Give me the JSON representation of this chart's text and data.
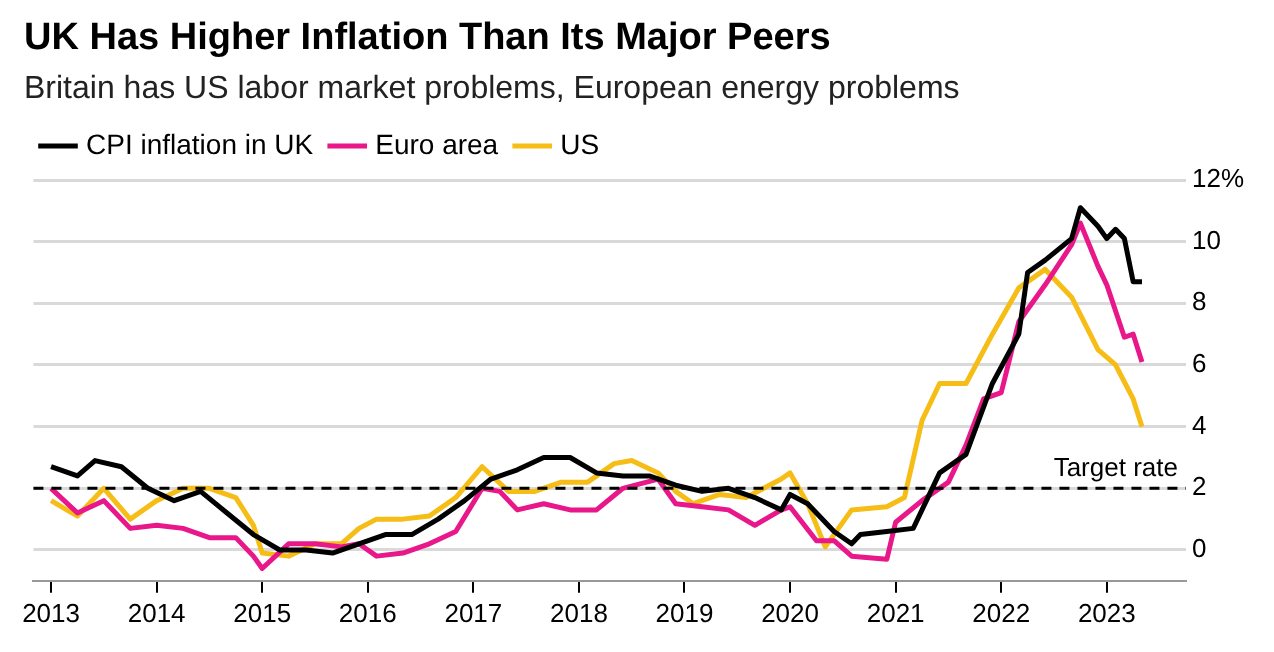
{
  "chart_data": {
    "type": "line",
    "title": "UK Has Higher Inflation Than Its Major Peers",
    "subtitle": "Britain has US labor market problems, European energy problems",
    "x": [
      "2013-01",
      "2013-04",
      "2013-06",
      "2013-09",
      "2013-12",
      "2014-03",
      "2014-06",
      "2014-09",
      "2014-12",
      "2015-03",
      "2015-06",
      "2015-09",
      "2015-12",
      "2016-03",
      "2016-06",
      "2016-09",
      "2016-12",
      "2017-03",
      "2017-06",
      "2017-09",
      "2017-12",
      "2018-03",
      "2018-06",
      "2018-09",
      "2018-12",
      "2019-03",
      "2019-06",
      "2019-09",
      "2019-12",
      "2020-01",
      "2020-03",
      "2020-06",
      "2020-08",
      "2020-09",
      "2020-12",
      "2021-03",
      "2021-06",
      "2021-09",
      "2021-12",
      "2022-03",
      "2022-04",
      "2022-06",
      "2022-09",
      "2022-10",
      "2022-12",
      "2023-01",
      "2023-02",
      "2023-03",
      "2023-04",
      "2023-05"
    ],
    "series": [
      {
        "name": "CPI inflation in UK",
        "color": "#000000",
        "values": [
          2.7,
          2.4,
          2.9,
          2.7,
          2.0,
          1.6,
          1.9,
          1.2,
          0.5,
          0.0,
          0.0,
          -0.1,
          0.2,
          0.5,
          0.5,
          1.0,
          1.6,
          2.3,
          2.6,
          3.0,
          3.0,
          2.5,
          2.4,
          2.4,
          2.1,
          1.9,
          2.0,
          1.7,
          1.3,
          1.8,
          1.5,
          0.6,
          0.2,
          0.5,
          0.6,
          0.7,
          2.5,
          3.1,
          5.4,
          7.0,
          9.0,
          9.4,
          10.1,
          11.1,
          10.5,
          10.1,
          10.4,
          10.1,
          8.7,
          8.7
        ]
      },
      {
        "name": "Euro area",
        "color": "#e8178a",
        "x": [
          "2013-01",
          "2013-04",
          "2013-07",
          "2013-10",
          "2014-01",
          "2014-04",
          "2014-07",
          "2014-10",
          "2014-12",
          "2015-01",
          "2015-04",
          "2015-07",
          "2015-10",
          "2015-12",
          "2016-02",
          "2016-05",
          "2016-08",
          "2016-11",
          "2017-02",
          "2017-04",
          "2017-06",
          "2017-09",
          "2017-12",
          "2018-03",
          "2018-06",
          "2018-10",
          "2018-12",
          "2019-03",
          "2019-06",
          "2019-09",
          "2019-12",
          "2020-01",
          "2020-04",
          "2020-06",
          "2020-08",
          "2020-12",
          "2021-01",
          "2021-04",
          "2021-07",
          "2021-09",
          "2021-11",
          "2022-01",
          "2022-03",
          "2022-06",
          "2022-09",
          "2022-10",
          "2022-12",
          "2023-01",
          "2023-03",
          "2023-04",
          "2023-05"
        ],
        "values": [
          2.0,
          1.2,
          1.6,
          0.7,
          0.8,
          0.7,
          0.4,
          0.4,
          -0.2,
          -0.6,
          0.2,
          0.2,
          0.1,
          0.2,
          -0.2,
          -0.1,
          0.2,
          0.6,
          2.0,
          1.9,
          1.3,
          1.5,
          1.3,
          1.3,
          2.0,
          2.3,
          1.5,
          1.4,
          1.3,
          0.8,
          1.3,
          1.4,
          0.3,
          0.3,
          -0.2,
          -0.3,
          0.9,
          1.6,
          2.2,
          3.4,
          4.9,
          5.1,
          7.4,
          8.6,
          9.9,
          10.6,
          9.2,
          8.6,
          6.9,
          7.0,
          6.1
        ]
      },
      {
        "name": "US",
        "color": "#f5bd16",
        "x": [
          "2013-01",
          "2013-04",
          "2013-07",
          "2013-10",
          "2014-01",
          "2014-04",
          "2014-07",
          "2014-10",
          "2014-12",
          "2015-01",
          "2015-04",
          "2015-07",
          "2015-10",
          "2015-12",
          "2016-02",
          "2016-05",
          "2016-08",
          "2016-11",
          "2017-02",
          "2017-05",
          "2017-08",
          "2017-11",
          "2018-02",
          "2018-05",
          "2018-07",
          "2018-10",
          "2018-12",
          "2019-02",
          "2019-05",
          "2019-08",
          "2019-12",
          "2020-01",
          "2020-03",
          "2020-05",
          "2020-08",
          "2020-12",
          "2021-02",
          "2021-04",
          "2021-06",
          "2021-09",
          "2021-12",
          "2022-03",
          "2022-06",
          "2022-09",
          "2022-12",
          "2023-02",
          "2023-04",
          "2023-05"
        ],
        "values": [
          1.6,
          1.1,
          2.0,
          1.0,
          1.6,
          2.0,
          2.0,
          1.7,
          0.8,
          -0.1,
          -0.2,
          0.2,
          0.2,
          0.7,
          1.0,
          1.0,
          1.1,
          1.7,
          2.7,
          1.9,
          1.9,
          2.2,
          2.2,
          2.8,
          2.9,
          2.5,
          1.9,
          1.5,
          1.8,
          1.7,
          2.3,
          2.5,
          1.5,
          0.1,
          1.3,
          1.4,
          1.7,
          4.2,
          5.4,
          5.4,
          7.0,
          8.5,
          9.1,
          8.2,
          6.5,
          6.0,
          4.9,
          4.0
        ]
      }
    ],
    "xlim": [
      "2012-11",
      "2023-10"
    ],
    "xticks": [
      "2013",
      "2014",
      "2015",
      "2016",
      "2017",
      "2018",
      "2019",
      "2020",
      "2021",
      "2022",
      "2023"
    ],
    "ylim": [
      -1,
      12
    ],
    "yticks": [
      0,
      2,
      4,
      6,
      8,
      10,
      {
        "value": 12,
        "label": "12%"
      }
    ],
    "grid": "y",
    "legend": "top left",
    "ref_lines": [
      {
        "axis": "y",
        "value": 2,
        "label": "Target rate",
        "line_style": "dashed"
      }
    ]
  }
}
